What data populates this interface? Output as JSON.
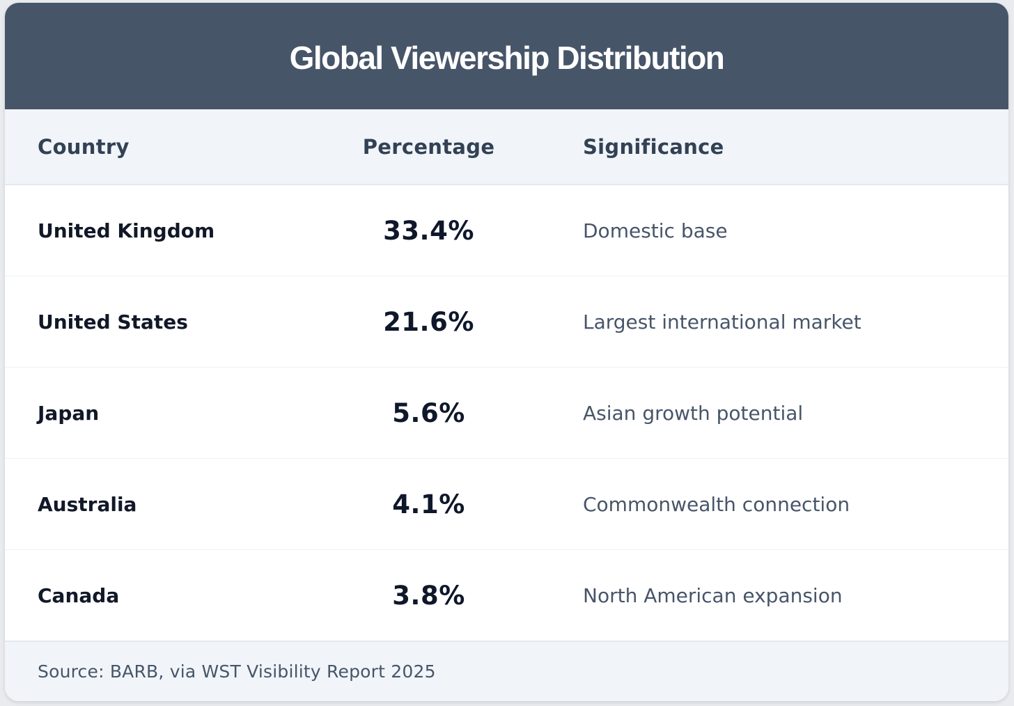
{
  "chart_data": {
    "type": "table",
    "title": "Global Viewership Distribution",
    "columns": [
      "Country",
      "Percentage",
      "Significance"
    ],
    "rows": [
      {
        "country": "United Kingdom",
        "percentage": "33.4%",
        "value": 33.4,
        "significance": "Domestic base"
      },
      {
        "country": "United States",
        "percentage": "21.6%",
        "value": 21.6,
        "significance": "Largest international market"
      },
      {
        "country": "Japan",
        "percentage": "5.6%",
        "value": 5.6,
        "significance": "Asian growth potential"
      },
      {
        "country": "Australia",
        "percentage": "4.1%",
        "value": 4.1,
        "significance": "Commonwealth connection"
      },
      {
        "country": "Canada",
        "percentage": "3.8%",
        "value": 3.8,
        "significance": "North American expansion"
      }
    ],
    "source": "Source: BARB, via WST Visibility Report 2025"
  },
  "colors": {
    "header_bg": "#475569",
    "header_row_bg": "#f1f5f9",
    "text_dark": "#111827",
    "text_muted": "#475569"
  }
}
